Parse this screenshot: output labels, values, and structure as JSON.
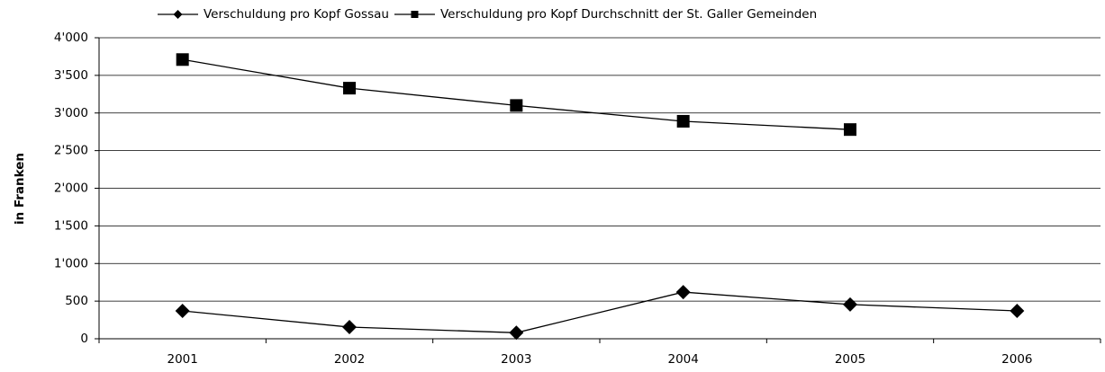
{
  "chart_data": {
    "type": "line",
    "y_label": "in Franken",
    "categories": [
      "2001",
      "2002",
      "2003",
      "2004",
      "2005",
      "2006"
    ],
    "series": [
      {
        "name": "Verschuldung pro Kopf Gossau",
        "color": "#000000",
        "marker": "diamond",
        "values": [
          370,
          155,
          80,
          620,
          455,
          370
        ]
      },
      {
        "name": "Verschuldung pro Kopf Durchschnitt der St. Galler Gemeinden",
        "color": "#000000",
        "marker": "square",
        "values": [
          3710,
          3330,
          3100,
          2890,
          2780,
          null
        ]
      }
    ],
    "ylim": [
      0,
      4000
    ],
    "yticks": [
      0,
      500,
      {
        "value": 1000,
        "label": "1'000"
      },
      {
        "value": 1500,
        "label": "1'500"
      },
      {
        "value": 2000,
        "label": "2'000"
      },
      {
        "value": 2500,
        "label": "2'500"
      },
      {
        "value": 3000,
        "label": "3'000"
      },
      {
        "value": 3500,
        "label": "3'500"
      },
      {
        "value": 4000,
        "label": "4'000"
      }
    ],
    "grid": true
  }
}
